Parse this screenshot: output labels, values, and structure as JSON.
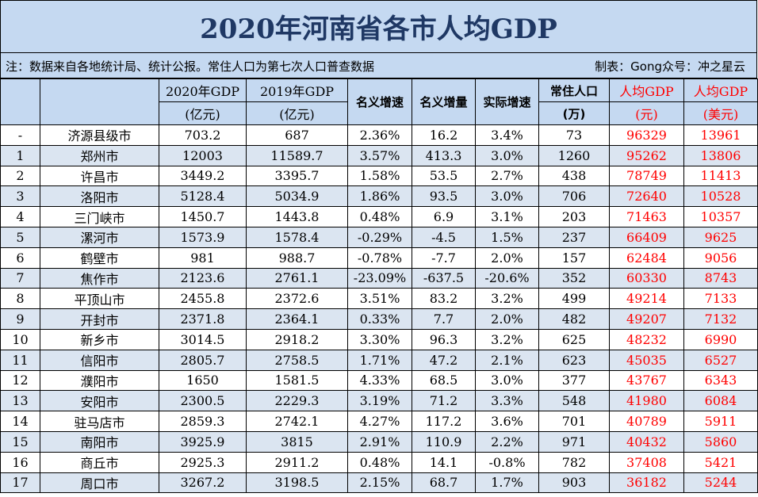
{
  "title": "2020年河南省各市人均GDP",
  "note": {
    "left": "注：数据来自各地统计局、统计公报。常住人口为第七次人口普查数据",
    "right": "制表：Gong众号：冲之星云"
  },
  "headers": {
    "gdp2020_line1": "2020年GDP",
    "gdp2020_line2": "(亿元)",
    "gdp2019_line1": "2019年GDP",
    "gdp2019_line2": "(亿元)",
    "nominal_growth": "名义增速",
    "nominal_increase": "名义增量",
    "real_growth": "实际增速",
    "population_line1": "常住人口",
    "population_line2": "(万)",
    "per_capita_cny_line1": "人均GDP",
    "per_capita_cny_line2": "(元)",
    "per_capita_usd_line1": "人均GDP",
    "per_capita_usd_line2": "(美元)"
  },
  "rows": [
    {
      "rank": "-",
      "city": "济源县级市",
      "gdp2020": "703.2",
      "gdp2019": "687",
      "nominal_growth": "2.36%",
      "nominal_increase": "16.2",
      "real_growth": "3.4%",
      "population": "73",
      "per_capita_cny": "96329",
      "per_capita_usd": "13961"
    },
    {
      "rank": "1",
      "city": "郑州市",
      "gdp2020": "12003",
      "gdp2019": "11589.7",
      "nominal_growth": "3.57%",
      "nominal_increase": "413.3",
      "real_growth": "3.0%",
      "population": "1260",
      "per_capita_cny": "95262",
      "per_capita_usd": "13806"
    },
    {
      "rank": "2",
      "city": "许昌市",
      "gdp2020": "3449.2",
      "gdp2019": "3395.7",
      "nominal_growth": "1.58%",
      "nominal_increase": "53.5",
      "real_growth": "2.7%",
      "population": "438",
      "per_capita_cny": "78749",
      "per_capita_usd": "11413"
    },
    {
      "rank": "3",
      "city": "洛阳市",
      "gdp2020": "5128.4",
      "gdp2019": "5034.9",
      "nominal_growth": "1.86%",
      "nominal_increase": "93.5",
      "real_growth": "3.0%",
      "population": "706",
      "per_capita_cny": "72640",
      "per_capita_usd": "10528"
    },
    {
      "rank": "4",
      "city": "三门峡市",
      "gdp2020": "1450.7",
      "gdp2019": "1443.8",
      "nominal_growth": "0.48%",
      "nominal_increase": "6.9",
      "real_growth": "3.1%",
      "population": "203",
      "per_capita_cny": "71463",
      "per_capita_usd": "10357"
    },
    {
      "rank": "5",
      "city": "漯河市",
      "gdp2020": "1573.9",
      "gdp2019": "1578.4",
      "nominal_growth": "-0.29%",
      "nominal_increase": "-4.5",
      "real_growth": "1.5%",
      "population": "237",
      "per_capita_cny": "66409",
      "per_capita_usd": "9625"
    },
    {
      "rank": "6",
      "city": "鹤壁市",
      "gdp2020": "981",
      "gdp2019": "988.7",
      "nominal_growth": "-0.78%",
      "nominal_increase": "-7.7",
      "real_growth": "2.0%",
      "population": "157",
      "per_capita_cny": "62484",
      "per_capita_usd": "9056"
    },
    {
      "rank": "7",
      "city": "焦作市",
      "gdp2020": "2123.6",
      "gdp2019": "2761.1",
      "nominal_growth": "-23.09%",
      "nominal_increase": "-637.5",
      "real_growth": "-20.6%",
      "population": "352",
      "per_capita_cny": "60330",
      "per_capita_usd": "8743"
    },
    {
      "rank": "8",
      "city": "平顶山市",
      "gdp2020": "2455.8",
      "gdp2019": "2372.6",
      "nominal_growth": "3.51%",
      "nominal_increase": "83.2",
      "real_growth": "3.2%",
      "population": "499",
      "per_capita_cny": "49214",
      "per_capita_usd": "7133"
    },
    {
      "rank": "9",
      "city": "开封市",
      "gdp2020": "2371.8",
      "gdp2019": "2364.1",
      "nominal_growth": "0.33%",
      "nominal_increase": "7.7",
      "real_growth": "2.0%",
      "population": "482",
      "per_capita_cny": "49207",
      "per_capita_usd": "7132"
    },
    {
      "rank": "10",
      "city": "新乡市",
      "gdp2020": "3014.5",
      "gdp2019": "2918.2",
      "nominal_growth": "3.30%",
      "nominal_increase": "96.3",
      "real_growth": "3.2%",
      "population": "625",
      "per_capita_cny": "48232",
      "per_capita_usd": "6990"
    },
    {
      "rank": "11",
      "city": "信阳市",
      "gdp2020": "2805.7",
      "gdp2019": "2758.5",
      "nominal_growth": "1.71%",
      "nominal_increase": "47.2",
      "real_growth": "2.1%",
      "population": "623",
      "per_capita_cny": "45035",
      "per_capita_usd": "6527"
    },
    {
      "rank": "12",
      "city": "濮阳市",
      "gdp2020": "1650",
      "gdp2019": "1581.5",
      "nominal_growth": "4.33%",
      "nominal_increase": "68.5",
      "real_growth": "3.0%",
      "population": "377",
      "per_capita_cny": "43767",
      "per_capita_usd": "6343"
    },
    {
      "rank": "13",
      "city": "安阳市",
      "gdp2020": "2300.5",
      "gdp2019": "2229.3",
      "nominal_growth": "3.19%",
      "nominal_increase": "71.2",
      "real_growth": "3.3%",
      "population": "548",
      "per_capita_cny": "41980",
      "per_capita_usd": "6084"
    },
    {
      "rank": "14",
      "city": "驻马店市",
      "gdp2020": "2859.3",
      "gdp2019": "2742.1",
      "nominal_growth": "4.27%",
      "nominal_increase": "117.2",
      "real_growth": "3.6%",
      "population": "701",
      "per_capita_cny": "40789",
      "per_capita_usd": "5911"
    },
    {
      "rank": "15",
      "city": "南阳市",
      "gdp2020": "3925.9",
      "gdp2019": "3815",
      "nominal_growth": "2.91%",
      "nominal_increase": "110.9",
      "real_growth": "2.2%",
      "population": "971",
      "per_capita_cny": "40432",
      "per_capita_usd": "5860"
    },
    {
      "rank": "16",
      "city": "商丘市",
      "gdp2020": "2925.3",
      "gdp2019": "2911.2",
      "nominal_growth": "0.48%",
      "nominal_increase": "14.1",
      "real_growth": "-0.8%",
      "population": "782",
      "per_capita_cny": "37408",
      "per_capita_usd": "5421"
    },
    {
      "rank": "17",
      "city": "周口市",
      "gdp2020": "3267.2",
      "gdp2019": "3198.5",
      "nominal_growth": "2.15%",
      "nominal_increase": "68.7",
      "real_growth": "1.7%",
      "population": "903",
      "per_capita_cny": "36182",
      "per_capita_usd": "5244"
    }
  ],
  "colors": {
    "header_bg": "#c5d9f1",
    "stripe_bg": "#dbe5f1",
    "title_text": "#1f3864",
    "highlight_text": "#ff0000"
  }
}
